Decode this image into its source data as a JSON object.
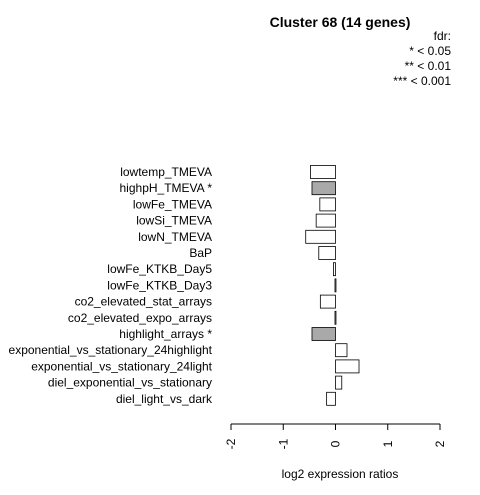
{
  "chart_data": {
    "type": "bar",
    "orientation": "horizontal",
    "title": "Cluster 68 (14 genes)",
    "xlabel": "log2 expression ratios",
    "ylabel": "",
    "xlim": [
      -2,
      2
    ],
    "xticks": [
      "-2",
      "-1",
      "0",
      "1",
      "2"
    ],
    "legend": {
      "title": "fdr:",
      "entries": [
        "* < 0.05",
        "** < 0.01",
        "*** < 0.001"
      ],
      "placement": "top-right"
    },
    "categories": [
      "lowtemp_TMEVA",
      "highpH_TMEVA *",
      "lowFe_TMEVA",
      "lowSi_TMEVA",
      "lowN_TMEVA",
      "BaP",
      "lowFe_KTKB_Day5",
      "lowFe_KTKB_Day3",
      "co2_elevated_stat_arrays",
      "co2_elevated_expo_arrays",
      "highlight_arrays *",
      "exponential_vs_stationary_24highlight",
      "exponential_vs_stationary_24light",
      "diel_exponential_vs_stationary",
      "diel_light_vs_dark"
    ],
    "values": [
      -0.48,
      -0.45,
      -0.3,
      -0.37,
      -0.57,
      -0.32,
      -0.04,
      -0.01,
      -0.29,
      -0.01,
      -0.45,
      0.22,
      0.45,
      0.12,
      -0.17
    ],
    "significant": [
      false,
      true,
      false,
      false,
      false,
      false,
      false,
      false,
      false,
      false,
      true,
      false,
      false,
      false,
      false
    ],
    "colors": {
      "normal": "#ffffff",
      "significant": "#a9a9a9",
      "stroke": "#000000"
    }
  }
}
